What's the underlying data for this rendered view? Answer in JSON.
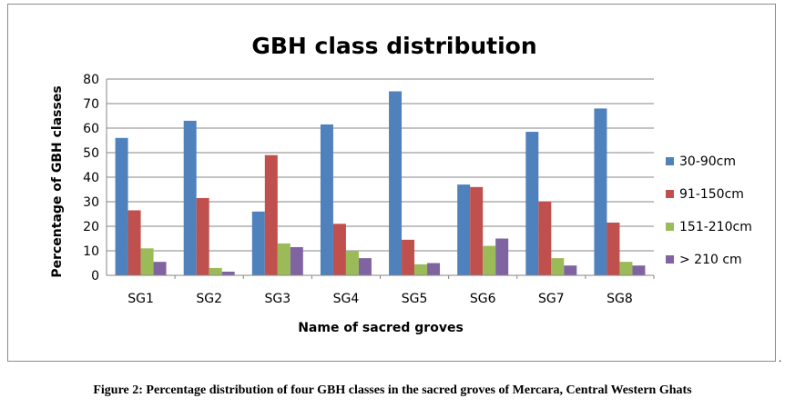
{
  "chart_data": {
    "type": "bar",
    "title": "GBH class distribution",
    "xlabel": "Name of sacred groves",
    "ylabel": "Percentage of GBH classes",
    "ylim": [
      0,
      80
    ],
    "yticks": [
      0,
      10,
      20,
      30,
      40,
      50,
      60,
      70,
      80
    ],
    "grid": true,
    "legend_position": "right",
    "categories": [
      "SG1",
      "SG2",
      "SG3",
      "SG4",
      "SG5",
      "SG6",
      "SG7",
      "SG8"
    ],
    "series": [
      {
        "name": "30-90cm",
        "color": "#4f81bd",
        "values": [
          56,
          63,
          26,
          61.5,
          75,
          37,
          58.5,
          68
        ]
      },
      {
        "name": "91-150cm",
        "color": "#c0504d",
        "values": [
          26.5,
          31.5,
          49,
          21,
          14.5,
          36,
          30,
          21.5
        ]
      },
      {
        "name": "151-210cm",
        "color": "#9bbb59",
        "values": [
          11,
          3,
          13,
          10,
          4.5,
          12,
          7,
          5.5
        ]
      },
      {
        "name": "> 210 cm",
        "color": "#8064a2",
        "values": [
          5.5,
          1.5,
          11.5,
          7,
          5,
          15,
          4,
          4
        ]
      }
    ]
  },
  "caption": "Figure 2: Percentage distribution of four GBH classes in the sacred groves of Mercara, Central Western Ghats",
  "trailing_mark": "."
}
